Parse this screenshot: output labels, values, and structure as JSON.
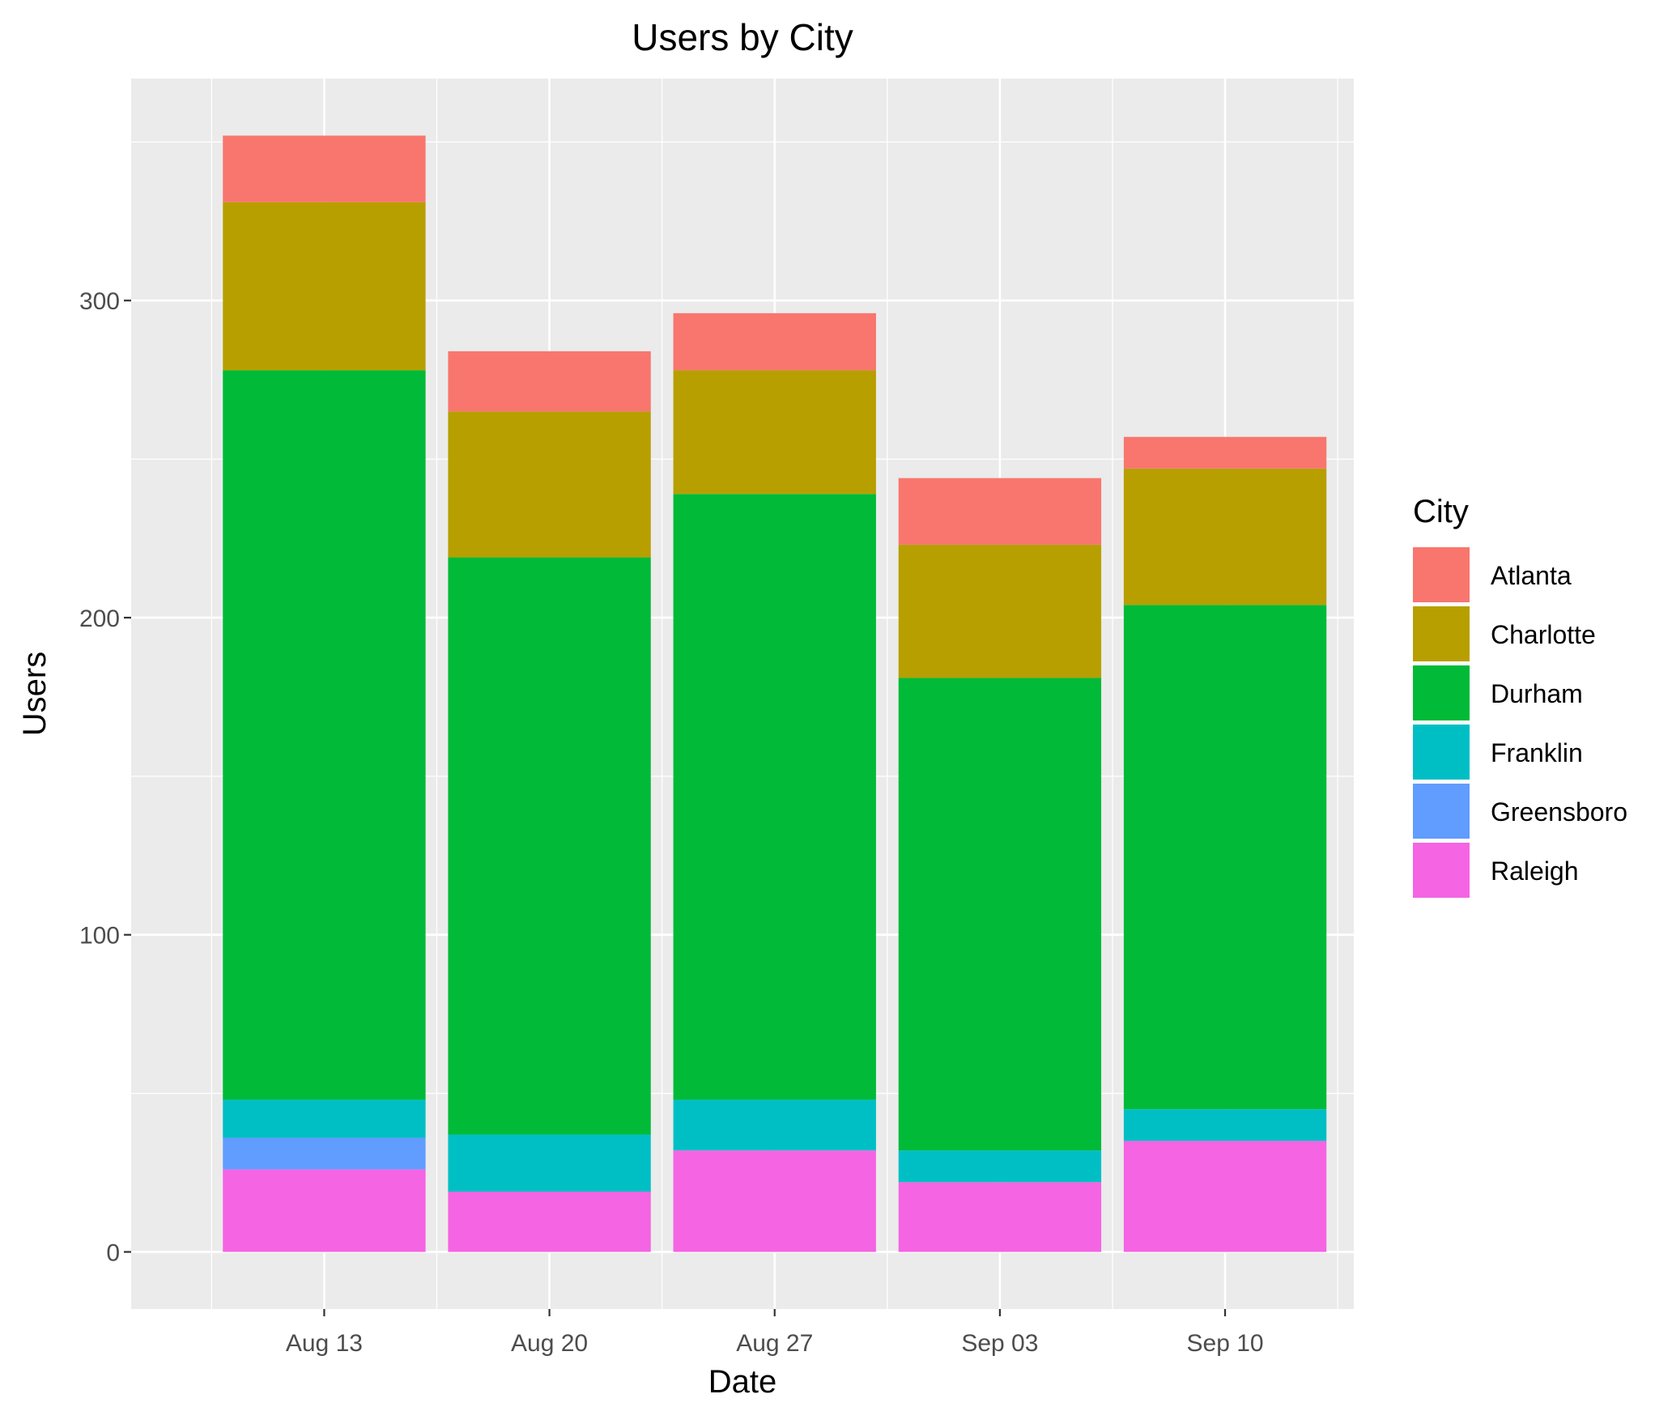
{
  "chart_data": {
    "type": "bar",
    "stacked": true,
    "title": "Users by City",
    "xlabel": "Date",
    "ylabel": "Users",
    "x_ticks": [
      "Aug 13",
      "Aug 20",
      "Aug 27",
      "Sep 03",
      "Sep 10"
    ],
    "y_ticks": [
      0,
      100,
      200,
      300
    ],
    "ylim": [
      -18,
      370
    ],
    "xlim": [
      "2018-08-07",
      "2018-09-14"
    ],
    "categories": [
      "2018-08-13",
      "2018-08-20",
      "2018-08-27",
      "2018-09-03",
      "2018-09-10"
    ],
    "legend_title": "City",
    "legend_position": "right",
    "grid": true,
    "series": [
      {
        "name": "Raleigh",
        "color": "#F564E3",
        "values": [
          26,
          19,
          32,
          22,
          35
        ]
      },
      {
        "name": "Greensboro",
        "color": "#619CFF",
        "values": [
          10,
          0,
          0,
          0,
          0
        ]
      },
      {
        "name": "Franklin",
        "color": "#00BFC4",
        "values": [
          12,
          18,
          16,
          10,
          10
        ]
      },
      {
        "name": "Durham",
        "color": "#00BA38",
        "values": [
          230,
          182,
          191,
          149,
          159
        ]
      },
      {
        "name": "Charlotte",
        "color": "#B79F00",
        "values": [
          53,
          46,
          39,
          42,
          43
        ]
      },
      {
        "name": "Atlanta",
        "color": "#F8766D",
        "values": [
          21,
          19,
          18,
          21,
          10
        ]
      }
    ],
    "legend_order": [
      "Atlanta",
      "Charlotte",
      "Durham",
      "Franklin",
      "Greensboro",
      "Raleigh"
    ]
  }
}
